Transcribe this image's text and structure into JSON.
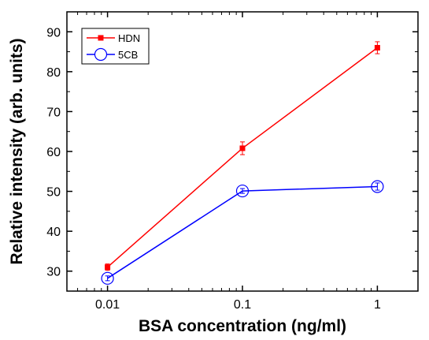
{
  "chart_data": {
    "type": "line",
    "xlabel": "BSA concentration (ng/ml)",
    "ylabel": "Relative intensity (arb. units)",
    "xscale": "log",
    "xlim": [
      0.005,
      2
    ],
    "ylim": [
      25,
      95
    ],
    "x": [
      0.01,
      0.1,
      1
    ],
    "x_tick_labels": [
      "0.01",
      "0.1",
      "1"
    ],
    "y_ticks": [
      30,
      40,
      50,
      60,
      70,
      80,
      90
    ],
    "grid": false,
    "legend_position": "top-left",
    "series": [
      {
        "name": "HDN",
        "values": [
          31.0,
          60.8,
          86.0
        ],
        "errors": [
          0.8,
          1.6,
          1.5
        ],
        "color": "#ff0000",
        "marker": "filled-square"
      },
      {
        "name": "5CB",
        "values": [
          28.2,
          50.1,
          51.2
        ],
        "errors": [
          0.6,
          0.6,
          0.9
        ],
        "color": "#0000ff",
        "marker": "open-circle"
      }
    ]
  }
}
